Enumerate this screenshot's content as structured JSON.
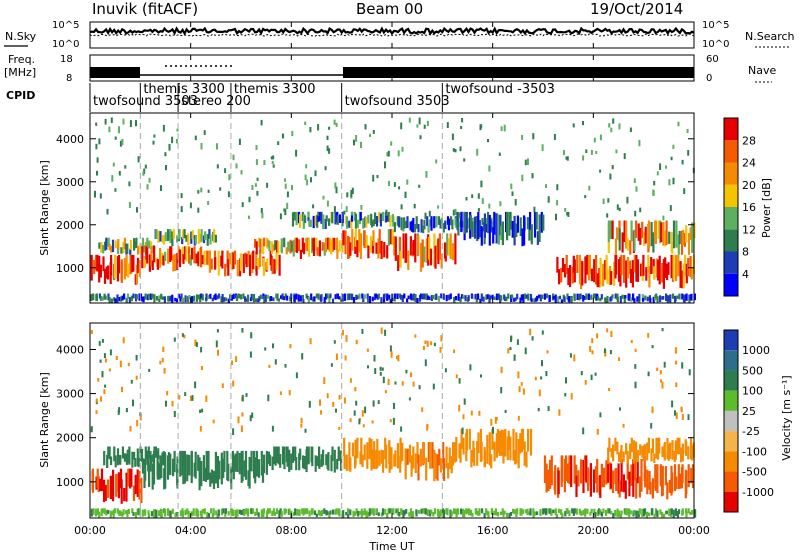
{
  "header": {
    "station": "Inuvik (fitACF)",
    "beam": "Beam 00",
    "date": "19/Oct/2014"
  },
  "param_panels": {
    "nsky": {
      "label": "N.Sky",
      "ticks": [
        "10^5",
        "10^0"
      ],
      "right_ticks": [
        "10^5",
        "10^0"
      ],
      "right_label": "N.Search"
    },
    "freq": {
      "label_line1": "Freq.",
      "label_line2": "[MHz]",
      "ticks": [
        "18",
        "8"
      ],
      "right_ticks": [
        "60",
        "0"
      ],
      "right_label": "Nave"
    }
  },
  "cpid": {
    "label": "CPID",
    "segments": [
      {
        "label": "twofsound 3503",
        "start_h": 0.0
      },
      {
        "label": "themis 3300",
        "start_h": 2.0
      },
      {
        "label": "stereo 200",
        "start_h": 3.5
      },
      {
        "label": "themis 3300",
        "start_h": 5.6
      },
      {
        "label": "twofsound 3503",
        "start_h": 10.0
      },
      {
        "label": "twofsound -3503",
        "start_h": 14.0
      }
    ]
  },
  "x_axis": {
    "label": "Time UT",
    "ticks": [
      "00:00",
      "04:00",
      "08:00",
      "12:00",
      "16:00",
      "20:00",
      "00:00"
    ]
  },
  "colors": {
    "power_scale": [
      "#0000ff",
      "#1e3cb4",
      "#2e7d4f",
      "#5daf62",
      "#f5c400",
      "#f58b00",
      "#f55a00",
      "#e60000"
    ],
    "velocity_scale": [
      "#1e3cb4",
      "#2e6e8c",
      "#2e7d4f",
      "#5dbb2e",
      "#c0c0c0",
      "#f5b44a",
      "#f58b00",
      "#f55a00",
      "#e60000"
    ]
  },
  "chart_data": [
    {
      "type": "heatmap",
      "title": "Power",
      "xlabel": "",
      "ylabel": "Slant Range [km]",
      "xlim": [
        0,
        24
      ],
      "ylim": [
        180,
        4600
      ],
      "yticks": [
        "1000",
        "2000",
        "3000",
        "4000"
      ],
      "colorbar": {
        "label": "Power [dB]",
        "ticks": [
          "4",
          "8",
          "12",
          "16",
          "20",
          "24",
          "28"
        ],
        "range": [
          0,
          32
        ]
      },
      "bands": [
        {
          "t0": 0.0,
          "t1": 2.0,
          "r0": 600,
          "r1": 1300,
          "value": 30
        },
        {
          "t0": 0.3,
          "t1": 2.5,
          "r0": 1300,
          "r1": 1700,
          "value": 14
        },
        {
          "t0": 2.0,
          "t1": 4.5,
          "r0": 900,
          "r1": 1500,
          "value": 28
        },
        {
          "t0": 2.5,
          "t1": 5.0,
          "r0": 1500,
          "r1": 1900,
          "value": 12
        },
        {
          "t0": 4.5,
          "t1": 7.5,
          "r0": 800,
          "r1": 1400,
          "value": 30
        },
        {
          "t0": 6.5,
          "t1": 8.0,
          "r0": 1300,
          "r1": 1700,
          "value": 20
        },
        {
          "t0": 8.0,
          "t1": 10.0,
          "r0": 1200,
          "r1": 1700,
          "value": 26
        },
        {
          "t0": 10.0,
          "t1": 12.0,
          "r0": 1200,
          "r1": 1900,
          "value": 28
        },
        {
          "t0": 8.0,
          "t1": 12.0,
          "r0": 1900,
          "r1": 2300,
          "value": 10
        },
        {
          "t0": 12.0,
          "t1": 14.5,
          "r0": 900,
          "r1": 1800,
          "value": 24
        },
        {
          "t0": 12.0,
          "t1": 16.0,
          "r0": 1800,
          "r1": 2200,
          "value": 8
        },
        {
          "t0": 14.5,
          "t1": 18.0,
          "r0": 1500,
          "r1": 2300,
          "value": 6
        },
        {
          "t0": 18.5,
          "t1": 24.0,
          "r0": 500,
          "r1": 1300,
          "value": 28
        },
        {
          "t0": 20.5,
          "t1": 24.0,
          "r0": 1300,
          "r1": 2100,
          "value": 20
        },
        {
          "t0": 0.0,
          "t1": 24.0,
          "r0": 180,
          "r1": 400,
          "value": 6
        }
      ]
    },
    {
      "type": "heatmap",
      "title": "Velocity",
      "xlabel": "Time UT",
      "ylabel": "Slant Range [km]",
      "xlim": [
        0,
        24
      ],
      "ylim": [
        180,
        4600
      ],
      "yticks": [
        "1000",
        "2000",
        "3000",
        "4000"
      ],
      "colorbar": {
        "label": "Velocity [m s⁻¹]",
        "ticks": [
          "1000",
          "500",
          "100",
          "25",
          "-25",
          "-100",
          "-500",
          "-1000"
        ]
      },
      "bands": [
        {
          "t0": 0.0,
          "t1": 2.0,
          "r0": 500,
          "r1": 1300,
          "value": -800
        },
        {
          "t0": 0.5,
          "t1": 3.0,
          "r0": 1300,
          "r1": 1800,
          "value": 200
        },
        {
          "t0": 2.0,
          "t1": 7.0,
          "r0": 800,
          "r1": 1700,
          "value": 150
        },
        {
          "t0": 7.0,
          "t1": 10.0,
          "r0": 1200,
          "r1": 1800,
          "value": 150
        },
        {
          "t0": 10.0,
          "t1": 12.5,
          "r0": 1200,
          "r1": 2000,
          "value": -200
        },
        {
          "t0": 12.5,
          "t1": 14.5,
          "r0": 1000,
          "r1": 1900,
          "value": -300
        },
        {
          "t0": 14.5,
          "t1": 17.5,
          "r0": 1300,
          "r1": 2200,
          "value": -200
        },
        {
          "t0": 18.0,
          "t1": 22.0,
          "r0": 600,
          "r1": 1600,
          "value": -700
        },
        {
          "t0": 22.0,
          "t1": 24.0,
          "r0": 600,
          "r1": 1400,
          "value": -600
        },
        {
          "t0": 20.5,
          "t1": 24.0,
          "r0": 1400,
          "r1": 2000,
          "value": -100
        },
        {
          "t0": 0.0,
          "t1": 24.0,
          "r0": 180,
          "r1": 400,
          "value": 50
        }
      ]
    }
  ]
}
